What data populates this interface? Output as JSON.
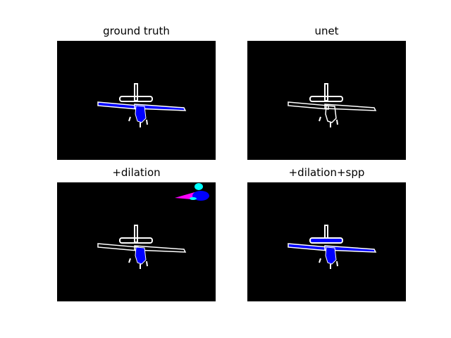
{
  "figure": {
    "panels": [
      {
        "id": "ground-truth",
        "title": "ground truth"
      },
      {
        "id": "unet",
        "title": "unet"
      },
      {
        "id": "dilation",
        "title": "+dilation"
      },
      {
        "id": "dilation-spp",
        "title": "+dilation+spp"
      }
    ],
    "colors": {
      "background": "#000000",
      "outline": "#ffffff",
      "class_blue": "#0000ff",
      "class_magenta": "#ff00ff",
      "class_cyan": "#00ffff"
    }
  }
}
